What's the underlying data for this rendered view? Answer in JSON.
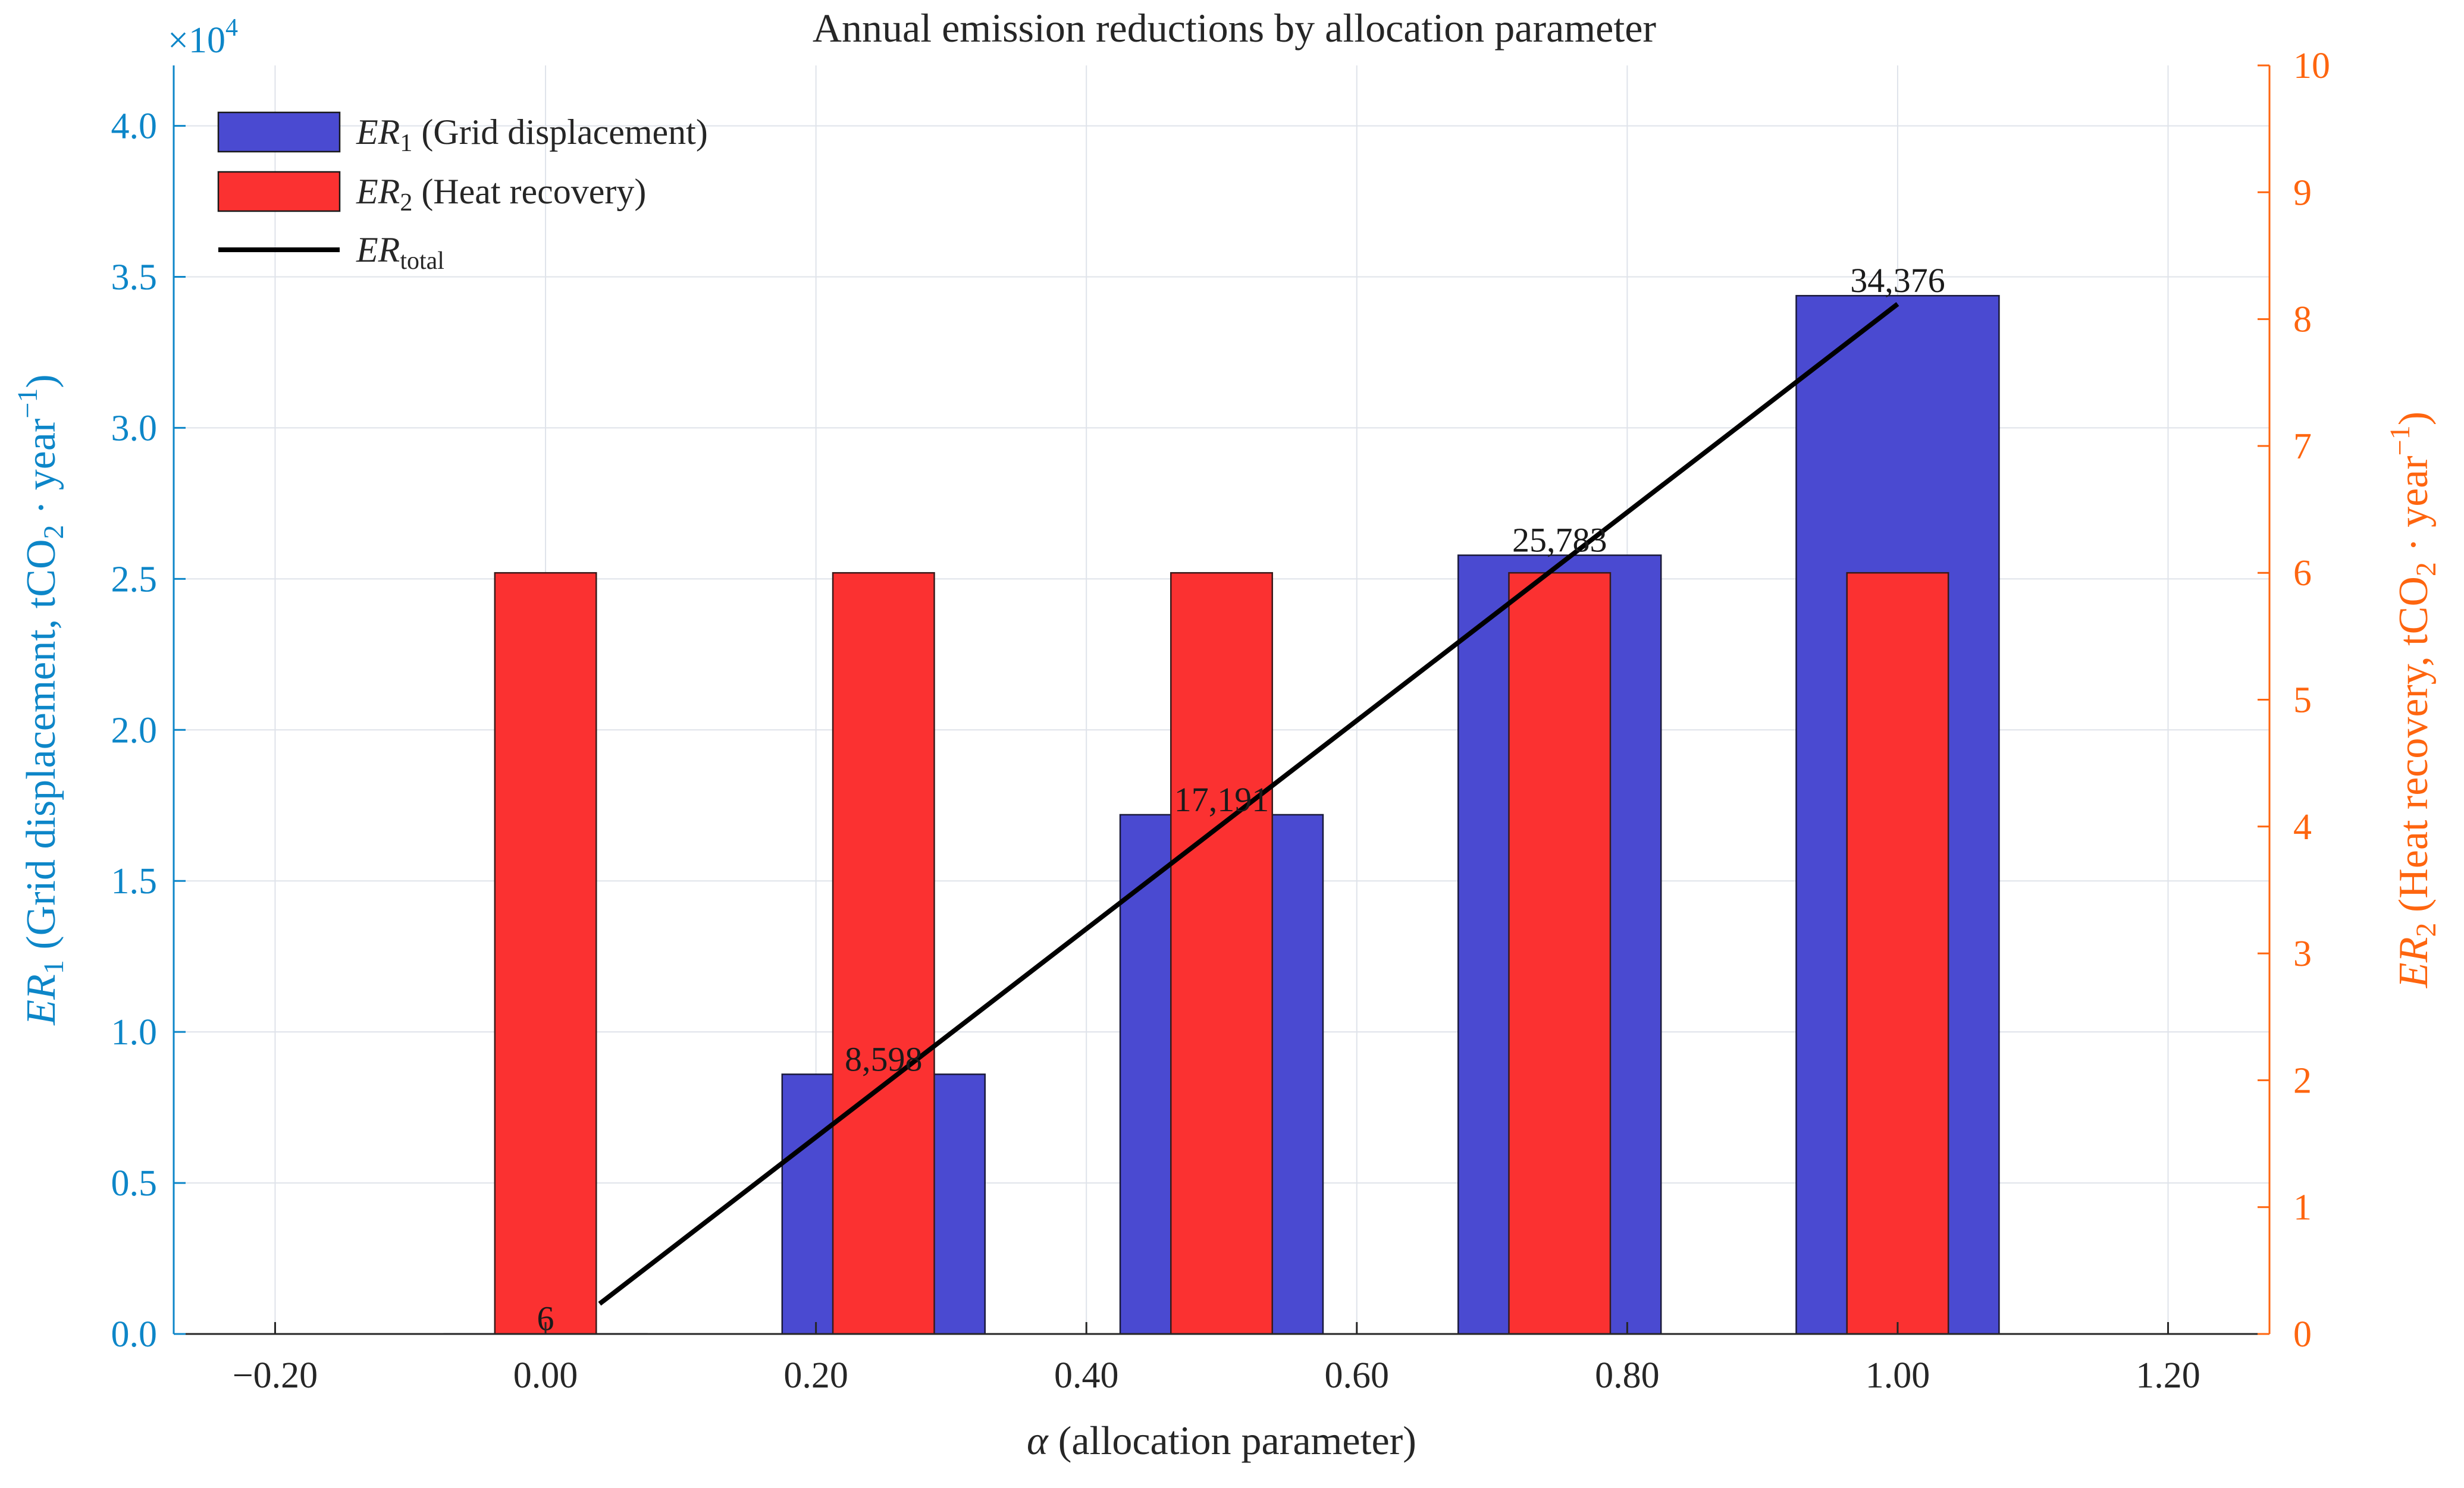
{
  "chart_data": {
    "type": "bar",
    "title": "Annual emission reductions by allocation parameter",
    "x": [
      0.0,
      0.25,
      0.5,
      0.75,
      1.0
    ],
    "series": [
      {
        "name": "ER1 (Grid displacement)",
        "legend_label": {
          "base": "ER",
          "sub": "1",
          "rest": " (Grid displacement)"
        },
        "axis": "left",
        "color": "#4a4ad1",
        "values": [
          6,
          8598,
          17191,
          25783,
          34376
        ],
        "data_labels": [
          "6",
          "8,598",
          "17,191",
          "25,783",
          "34,376"
        ]
      },
      {
        "name": "ER2 (Heat recovery)",
        "legend_label": {
          "base": "ER",
          "sub": "2",
          "rest": " (Heat recovery)"
        },
        "axis": "right",
        "color": "#fb3131",
        "values": [
          6,
          6,
          6,
          6,
          6
        ]
      },
      {
        "name": "ERtotal",
        "legend_label": {
          "base": "ER",
          "sub": "total",
          "rest": ""
        },
        "type": "line",
        "axis": "left",
        "color": "#000000",
        "x": [
          0.04,
          1.0
        ],
        "values": [
          1000,
          34100
        ]
      }
    ],
    "x_axis": {
      "label": "α (allocation parameter)",
      "label_greek": "α",
      "label_rest": " (allocation parameter)",
      "range": [
        -0.275,
        1.275
      ],
      "ticks": [
        -0.2,
        0.0,
        0.2,
        0.4,
        0.6,
        0.8,
        1.0,
        1.2
      ],
      "tick_labels": [
        "−0.20",
        "0.00",
        "0.20",
        "0.40",
        "0.60",
        "0.80",
        "1.00",
        "1.20"
      ]
    },
    "y_left": {
      "label": "ER1 (Grid displacement, tCO2 · year−1)",
      "label_base": "ER",
      "label_sub": "1",
      "label_mid": " (Grid displacement, tCO",
      "label_sub2": "2",
      "label_dot": " · year",
      "label_sup": "−1",
      "label_end": ")",
      "range": [
        0,
        42000
      ],
      "ticks": [
        0,
        5000,
        10000,
        15000,
        20000,
        25000,
        30000,
        35000,
        40000
      ],
      "tick_labels": [
        "0.0",
        "0.5",
        "1.0",
        "1.5",
        "2.0",
        "2.5",
        "3.0",
        "3.5",
        "4.0"
      ],
      "exponent_base": "×10",
      "exponent_power": "4",
      "color": "#0d86c8"
    },
    "y_right": {
      "label": "ER2 (Heat recovery, tCO2 · year−1)",
      "label_base": "ER",
      "label_sub": "2",
      "label_mid": " (Heat recovery, tCO",
      "label_sub2": "2",
      "label_dot": " · year",
      "label_sup": "−1",
      "label_end": ")",
      "range": [
        0,
        10
      ],
      "ticks": [
        0,
        1,
        2,
        3,
        4,
        5,
        6,
        7,
        8,
        9,
        10
      ],
      "tick_labels": [
        "0",
        "1",
        "2",
        "3",
        "4",
        "5",
        "6",
        "7",
        "8",
        "9",
        "10"
      ],
      "color": "#fe650f"
    },
    "grid": true,
    "legend_position": "top-left"
  }
}
